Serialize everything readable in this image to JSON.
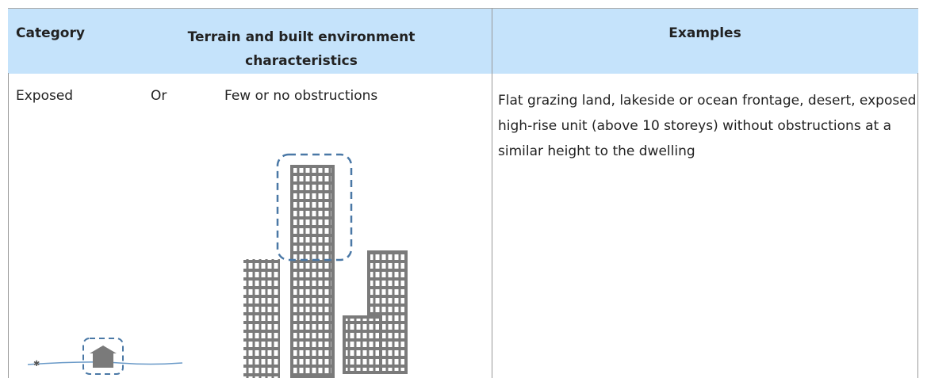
{
  "header": {
    "category": "Category",
    "terrain": "Terrain and built environment characteristics",
    "examples": "Examples"
  },
  "rows": [
    {
      "category": "Exposed",
      "connector": "Or",
      "terrain": "Few or no obstructions",
      "examples": "Flat grazing land, lakeside or ocean frontage, desert, exposed high-rise unit (above 10 storeys) without obstructions at a similar height to the dwelling"
    }
  ]
}
